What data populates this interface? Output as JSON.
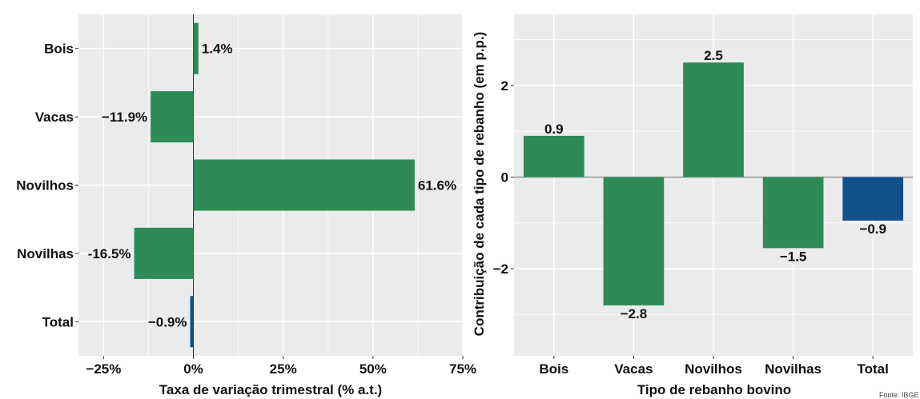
{
  "colors": {
    "panel_bg": "#ebebeb",
    "grid": "#ffffff",
    "green": "#2e8b57",
    "blue": "#11508c",
    "zero_line": "#999999"
  },
  "chart_data": [
    {
      "type": "bar",
      "orientation": "horizontal",
      "categories": [
        "Bois",
        "Vacas",
        "Novilhos",
        "Novilhas",
        "Total"
      ],
      "values": [
        1.4,
        -11.9,
        61.6,
        -16.5,
        -0.9
      ],
      "data_labels": [
        "1.4%",
        "−11.9%",
        "61.6%",
        "-16.5%",
        "−0.9%"
      ],
      "bar_colors": [
        "green",
        "green",
        "green",
        "green",
        "blue"
      ],
      "xlabel": "Taxa de variação trimestral (% a.t.)",
      "ylabel": "",
      "xlim": [
        -32,
        75
      ],
      "xticks": [
        -25,
        0,
        25,
        50,
        75
      ],
      "xtick_labels": [
        "−25%",
        "0%",
        "25%",
        "50%",
        "75%"
      ],
      "grid": true
    },
    {
      "type": "bar",
      "orientation": "vertical",
      "categories": [
        "Bois",
        "Vacas",
        "Novilhos",
        "Novilhas",
        "Total"
      ],
      "values": [
        0.9,
        -2.8,
        2.5,
        -1.55,
        -0.95
      ],
      "data_labels": [
        "0.9",
        "−2.8",
        "2.5",
        "−1.5",
        "−0.9"
      ],
      "bar_colors": [
        "green",
        "green",
        "green",
        "green",
        "blue"
      ],
      "xlabel": "Tipo de rebanho bovino",
      "ylabel": "Contribuição de cada tipo de rebanho (em p.p.)",
      "ylim": [
        -3.9,
        3.55
      ],
      "yticks": [
        -2,
        0,
        2
      ],
      "ytick_labels": [
        "−2",
        "0",
        "2"
      ],
      "grid": true
    }
  ],
  "source_note": "Fonte: IBGE"
}
